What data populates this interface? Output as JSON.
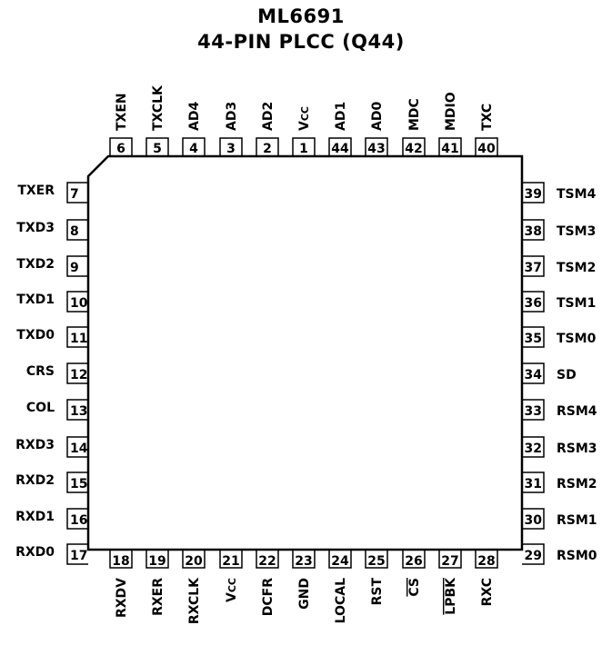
{
  "title": "ML6691",
  "subtitle": "44-PIN PLCC (Q44)",
  "pins": {
    "top": [
      {
        "num": "6",
        "name": "TXEN"
      },
      {
        "num": "5",
        "name": "TXCLK"
      },
      {
        "num": "4",
        "name": "AD4"
      },
      {
        "num": "3",
        "name": "AD3"
      },
      {
        "num": "2",
        "name": "AD2"
      },
      {
        "num": "1",
        "name": "VCC"
      },
      {
        "num": "44",
        "name": "AD1"
      },
      {
        "num": "43",
        "name": "AD0"
      },
      {
        "num": "42",
        "name": "MDC"
      },
      {
        "num": "41",
        "name": "MDIO"
      },
      {
        "num": "40",
        "name": "TXC"
      }
    ],
    "left": [
      {
        "num": "7",
        "name": "TXER"
      },
      {
        "num": "8",
        "name": "TXD3"
      },
      {
        "num": "9",
        "name": "TXD2"
      },
      {
        "num": "10",
        "name": "TXD1"
      },
      {
        "num": "11",
        "name": "TXD0"
      },
      {
        "num": "12",
        "name": "CRS"
      },
      {
        "num": "13",
        "name": "COL"
      },
      {
        "num": "14",
        "name": "RXD3"
      },
      {
        "num": "15",
        "name": "RXD2"
      },
      {
        "num": "16",
        "name": "RXD1"
      },
      {
        "num": "17",
        "name": "RXD0"
      }
    ],
    "right": [
      {
        "num": "39",
        "name": "TSM4"
      },
      {
        "num": "38",
        "name": "TSM3"
      },
      {
        "num": "37",
        "name": "TSM2"
      },
      {
        "num": "36",
        "name": "TSM1"
      },
      {
        "num": "35",
        "name": "TSM0"
      },
      {
        "num": "34",
        "name": "SD"
      },
      {
        "num": "33",
        "name": "RSM4"
      },
      {
        "num": "32",
        "name": "RSM3"
      },
      {
        "num": "31",
        "name": "RSM2"
      },
      {
        "num": "30",
        "name": "RSM1"
      },
      {
        "num": "29",
        "name": "RSM0"
      }
    ],
    "bottom": [
      {
        "num": "18",
        "name": "RXDV"
      },
      {
        "num": "19",
        "name": "RXER"
      },
      {
        "num": "20",
        "name": "RXCLK"
      },
      {
        "num": "21",
        "name": "VCC"
      },
      {
        "num": "22",
        "name": "DCFR"
      },
      {
        "num": "23",
        "name": "GND"
      },
      {
        "num": "24",
        "name": "LOCAL"
      },
      {
        "num": "25",
        "name": "RST"
      },
      {
        "num": "26",
        "name": "CS",
        "overline": true
      },
      {
        "num": "27",
        "name": "LPBK",
        "overline": true
      },
      {
        "num": "28",
        "name": "RXC"
      }
    ]
  },
  "colors": {
    "line": "#000000",
    "background": "#ffffff"
  }
}
